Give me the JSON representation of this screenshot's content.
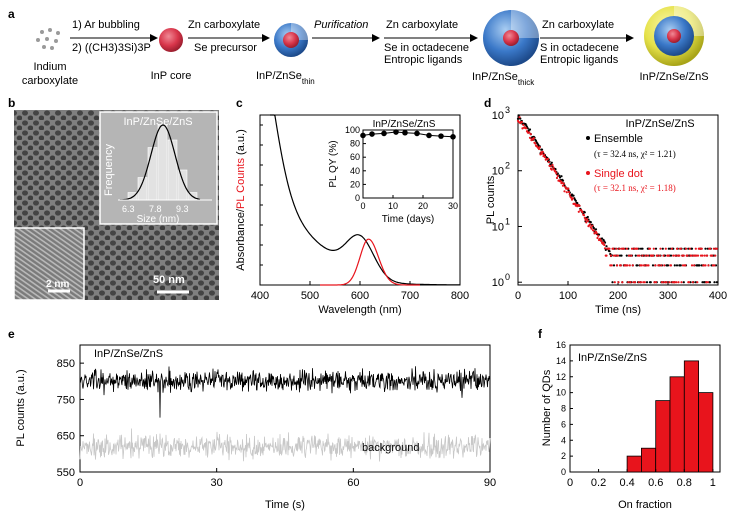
{
  "panels": {
    "a": "a",
    "b": "b",
    "c": "c",
    "d": "d",
    "e": "e",
    "f": "f"
  },
  "panel_a": {
    "reagent": [
      "Indium",
      "carboxylate"
    ],
    "step1": [
      "1) Ar bubbling",
      "2) ((CH3)3Si)3P"
    ],
    "step2": [
      "Zn carboxylate",
      "Se precursor"
    ],
    "step3": "Purification",
    "step4": [
      "Zn carboxylate",
      "Se in octadecene",
      "Entropic ligands"
    ],
    "step5": [
      "Zn carboxylate",
      "S in octadecene",
      "Entropic ligands"
    ],
    "products": [
      "InP core",
      "InP/ZnSe",
      "InP/ZnSe",
      "InP/ZnSe/ZnS"
    ],
    "subs": [
      "thin",
      "thick"
    ],
    "colors": {
      "core": "#d8354a",
      "zn_se": "#3a78c8",
      "zn_s": "#e6e24a"
    }
  },
  "panel_b": {
    "label": "InP/ZnSe/ZnS",
    "inset_y": "Frequency",
    "inset_x": "Size (nm)",
    "inset_ticks": [
      "6.3",
      "7.8",
      "9.3"
    ],
    "scale_small": "2 nm",
    "scale_large": "50 nm",
    "histogram": [
      1,
      3,
      7,
      10,
      8,
      4,
      1
    ]
  },
  "panel_c": {
    "ylabel_a": "Absorbance/",
    "ylabel_b": "PL Counts",
    "ylabel_c": " (a.u.)",
    "xlabel": "Wavelength (nm)",
    "xticks": [
      "400",
      "500",
      "600",
      "700",
      "800"
    ],
    "inset_title": "InP/ZnSe/ZnS",
    "inset_ylabel": "PL QY (%)",
    "inset_xlabel": "Time (days)",
    "inset_yticks": [
      "0",
      "20",
      "40",
      "60",
      "80",
      "100"
    ],
    "inset_xticks": [
      "0",
      "10",
      "20",
      "30"
    ],
    "qy_points": [
      [
        0,
        92
      ],
      [
        3,
        94
      ],
      [
        7,
        95
      ],
      [
        11,
        97
      ],
      [
        14,
        96
      ],
      [
        18,
        95
      ],
      [
        22,
        92
      ],
      [
        26,
        91
      ],
      [
        30,
        90
      ]
    ]
  },
  "panel_d": {
    "title": "InP/ZnSe/ZnS",
    "ylabel": "PL counts",
    "xlabel": "Time (ns)",
    "xticks": [
      "0",
      "100",
      "200",
      "300",
      "400"
    ],
    "yticks": [
      "10",
      "10",
      "10",
      "10"
    ],
    "yexp": [
      "0",
      "1",
      "2",
      "3"
    ],
    "ensemble_label": "Ensemble",
    "ensemble_fit": "(τ = 32.4 ns, χ² = 1.21)",
    "single_label": "Single dot",
    "single_fit": "(τ = 32.1 ns, χ² = 1.18)",
    "tau_ns": 32.4,
    "colors": {
      "ensemble": "#000000",
      "single": "#e8141c"
    }
  },
  "panel_e": {
    "label": "InP/ZnSe/ZnS",
    "background": "background",
    "ylabel": "PL counts (a.u.)",
    "xlabel": "Time (s)",
    "yticks": [
      "850",
      "750",
      "650",
      "550"
    ],
    "xticks": [
      "0",
      "30",
      "60",
      "90"
    ],
    "signal_mean": 800,
    "background_mean": 620
  },
  "panel_f": {
    "label": "InP/ZnSe/ZnS",
    "ylabel": "Number of QDs",
    "xlabel": "On fraction",
    "xticks": [
      "0",
      "0.2",
      "0.4",
      "0.6",
      "0.8",
      "1"
    ],
    "yticks": [
      "0",
      "2",
      "4",
      "6",
      "8",
      "10",
      "12",
      "14",
      "16"
    ],
    "bins": [
      0.4,
      0.5,
      0.6,
      0.7,
      0.8,
      0.9
    ],
    "counts": [
      2,
      3,
      9,
      12,
      14,
      10
    ],
    "bar_color": "#e8141c"
  }
}
